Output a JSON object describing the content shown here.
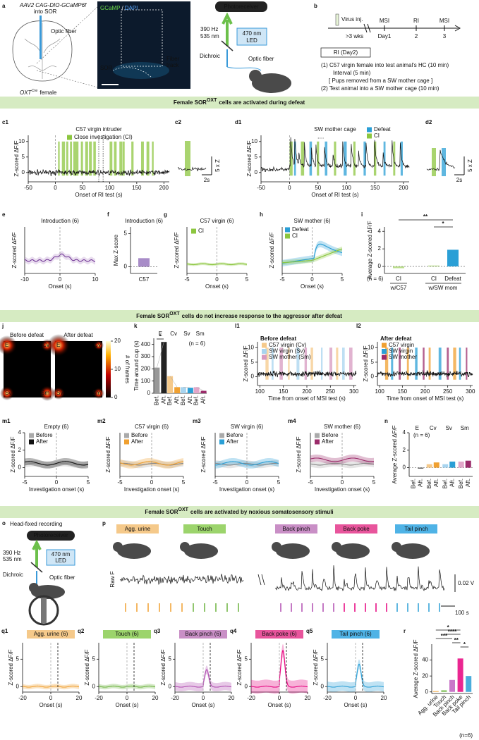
{
  "a": {
    "label": "a",
    "virus": "AAV2 CAG-DIO-GCaMP6f",
    "into": "into SOR",
    "fiber": "Optic fiber",
    "mouse": [
      "OXT",
      "Cre",
      "female"
    ],
    "stain": [
      "GCaMP",
      "/",
      "DAPI"
    ],
    "sor": "SOR",
    "track": [
      "Fiber",
      "track"
    ],
    "photoreceiver": "Photoreceiver",
    "freq": [
      "390 Hz",
      "535 nm"
    ],
    "led": [
      "470 nm",
      "LED"
    ],
    "dichroic": "Dichroic",
    "fiber2": "Optic fiber"
  },
  "b": {
    "label": "b",
    "virus": "Virus inj.",
    "wait": ">3 wks",
    "sessions": [
      {
        "name": "MSI",
        "day": "Day1"
      },
      {
        "name": "RI",
        "day": "2"
      },
      {
        "name": "MSI",
        "day": "3"
      }
    ],
    "box": "RI (Day2)",
    "steps": [
      "(1)  C57 virgin female into test animal's HC (10 min)",
      "Interval (5 min)",
      "[ Pups removed from a SW mother cage ]",
      "(2) Test animal into a SW mother cage (10 min)"
    ]
  },
  "banners": [
    [
      "Female SOR",
      "OXT",
      "cells are activated during defeat"
    ],
    [
      "Female SOR",
      "OXT",
      "cells do not increase response to the aggressor after defeat"
    ],
    [
      "Female SOR",
      "OXT",
      "cells are activated by noxious somatosensory stimuli"
    ]
  ],
  "c1": {
    "label": "c1",
    "title": "C57 virgin intruder",
    "legend": [
      "Close investigation (CI)"
    ],
    "ylabel": "Z-scored ΔF/F",
    "xlabel": "Onset of RI test (s)",
    "xlim": [
      -50,
      210
    ],
    "ylim": [
      -3,
      12
    ],
    "xticks": [
      -50,
      0,
      50,
      100,
      150,
      200
    ],
    "yticks": [
      0,
      5,
      10
    ]
  },
  "c2": {
    "label": "c2",
    "scale_y": "5 x Z",
    "scale_x": "2s"
  },
  "d1": {
    "label": "d1",
    "title": "SW mother cage",
    "legend": [
      "Defeat",
      "CI"
    ],
    "ylabel": "Z-scored ΔF/F",
    "xlabel": "Onset of RI test (s)",
    "xlim": [
      -50,
      210
    ],
    "ylim": [
      -3,
      12
    ],
    "xticks": [
      -50,
      0,
      50,
      100,
      150,
      200
    ],
    "yticks": [
      0,
      5,
      10
    ]
  },
  "d2": {
    "label": "d2",
    "scale_y": "5 x Z",
    "scale_x": "2s"
  },
  "e": {
    "label": "e",
    "title": "Introduction (6)",
    "ylabel": "Z-scored ΔF/F",
    "xlabel": "Onset (s)",
    "xlim": [
      -10,
      10
    ],
    "ylim": [
      -1,
      3
    ],
    "xticks": [
      -10,
      0,
      10
    ]
  },
  "f": {
    "label": "f",
    "title": "Introduction (6)",
    "ylabel": "Max Z-score",
    "ylim": [
      -1,
      6
    ],
    "yticks": [
      0,
      5
    ],
    "categories": [
      "C57"
    ],
    "values": [
      1.3
    ]
  },
  "g": {
    "label": "g",
    "title": "C57 virgin (6)",
    "legend": [
      "CI"
    ],
    "ylabel": "Z-scored ΔF/F",
    "xlabel": "Onset (s)",
    "xlim": [
      -5,
      5
    ],
    "ylim": [
      -1,
      4
    ],
    "xticks": [
      -5,
      0,
      5
    ]
  },
  "h": {
    "label": "h",
    "title": "SW mother (6)",
    "legend": [
      "Defeat",
      "CI"
    ],
    "ylabel": "Z-scored ΔF/F",
    "xlabel": "Onset (s)",
    "xlim": [
      -5,
      5
    ],
    "ylim": [
      -1,
      4
    ],
    "xticks": [
      -5,
      0,
      5
    ]
  },
  "i": {
    "label": "i",
    "ylabel": "Average Z-scored ΔF/F",
    "ylim": [
      -0.8,
      4.5
    ],
    "yticks": [
      0,
      2,
      4
    ],
    "categories": [
      "CI",
      "CI",
      "Defeat"
    ],
    "groups": [
      "w/C57",
      "w/SW mom"
    ],
    "values": [
      -0.2,
      0.1,
      1.9
    ],
    "n": "(n = 6)",
    "sig": [
      "**",
      "*"
    ]
  },
  "j": {
    "label": "j",
    "before": "Before defeat",
    "after": "After defeat",
    "corners": [
      "E",
      "Cv",
      "Sv",
      "Sm"
    ],
    "clim": [
      0,
      20
    ],
    "cbar_ticks": [
      0,
      10,
      20
    ],
    "cbar_label": "# of frames"
  },
  "k": {
    "label": "k",
    "ylabel": "Time around cup (s)",
    "ylim": [
      0,
      450
    ],
    "yticks": [
      0,
      100,
      200,
      300,
      400
    ],
    "groups": [
      "E",
      "Cv",
      "Sv",
      "Sm"
    ],
    "n": "(n = 6)",
    "sig": "*",
    "series": [
      {
        "name": "Bef.",
        "values": [
          210,
          140,
          50,
          50
        ]
      },
      {
        "name": "Aft.",
        "values": [
          420,
          50,
          45,
          20
        ]
      }
    ]
  },
  "l1": {
    "label": "l1",
    "title": "Before defeat",
    "legend": [
      "C57 virgin (Cv)",
      "SW virgin (Sv)",
      "SW mother (Sm)"
    ],
    "ylabel": "Z-scored ΔF/F",
    "xlabel": "Time from onset of MSI test (s)",
    "xlim": [
      95,
      305
    ],
    "ylim": [
      -3,
      12
    ],
    "xticks": [
      100,
      150,
      200,
      250,
      300
    ],
    "yticks": [
      0,
      5,
      10
    ]
  },
  "l2": {
    "label": "l2",
    "title": "After defeat",
    "legend": [
      "C57 virgin",
      "SW virgin",
      "SW mother"
    ],
    "ylabel": "Z-scored ΔF/F",
    "xlabel": "Time from onset of MSI test (s)",
    "xlim": [
      95,
      305
    ],
    "ylim": [
      -3,
      12
    ],
    "xticks": [
      100,
      150,
      200,
      250,
      300
    ],
    "yticks": [
      0,
      5,
      10
    ]
  },
  "m": [
    {
      "label": "m1",
      "title": "Empty (6)",
      "legend": [
        "Before",
        "After"
      ],
      "ylabel": "Z-scored ΔF/F",
      "xlabel": "Investigation onset (s)",
      "xlim": [
        -5,
        5
      ],
      "ylim": [
        -1,
        4
      ],
      "xticks": [
        -5,
        0,
        5
      ],
      "yticks": [
        0,
        2,
        4
      ]
    },
    {
      "label": "m2",
      "title": "C57 virgin (6)",
      "legend": [
        "Before",
        "After"
      ],
      "ylabel": "Z-scored ΔF/F",
      "xlabel": "Investigation onset (s)",
      "xlim": [
        -5,
        5
      ],
      "ylim": [
        -1,
        4
      ],
      "xticks": [
        -5,
        0,
        5
      ]
    },
    {
      "label": "m3",
      "title": "SW virgin (6)",
      "legend": [
        "Before",
        "After"
      ],
      "ylabel": "Z-scored ΔF/F",
      "xlabel": "Investigation onset (s)",
      "xlim": [
        -5,
        5
      ],
      "ylim": [
        -1,
        4
      ],
      "xticks": [
        -5,
        0,
        5
      ]
    },
    {
      "label": "m4",
      "title": "SW mother (6)",
      "legend": [
        "Before",
        "After"
      ],
      "ylabel": "Z-scored ΔF/F",
      "xlabel": "Investigation onset (s)",
      "xlim": [
        -5,
        5
      ],
      "ylim": [
        -1,
        4
      ],
      "xticks": [
        -5,
        0,
        5
      ]
    }
  ],
  "n": {
    "label": "n",
    "ylabel": "Average Z-scored ΔF/F",
    "ylim": [
      -1,
      4
    ],
    "yticks": [
      0,
      2,
      4
    ],
    "groups": [
      "E",
      "Cv",
      "Sv",
      "Sm"
    ],
    "n": "(n = 6)",
    "series": [
      {
        "name": "Bef.",
        "values": [
          0,
          0.4,
          0.4,
          0.7
        ]
      },
      {
        "name": "Aft.",
        "values": [
          -0.1,
          0.6,
          0.7,
          0.8
        ]
      }
    ]
  },
  "o": {
    "label": "o",
    "title": "Head-fixed recording",
    "photoreceiver": "Photoreceiver",
    "freq": [
      "390 Hz",
      "535 nm"
    ],
    "led": [
      "470 nm",
      "LED"
    ],
    "dichroic": "Dichroic",
    "fiber": "Optic fiber"
  },
  "p": {
    "label": "p",
    "stimuli": [
      "Agg. urine",
      "Touch",
      "Back pinch",
      "Back poke",
      "Tail pinch"
    ],
    "ylabel": "Raw F",
    "scale_y": "0.02 V",
    "scale_x": "100 s"
  },
  "q": [
    {
      "label": "q1",
      "title": "Agg. urine (6)",
      "ylabel": "Z-scored ΔF/F",
      "xlabel": "Onset (s)",
      "xlim": [
        -20,
        20
      ],
      "ylim": [
        -1,
        8
      ],
      "xticks": [
        -20,
        0,
        20
      ],
      "yticks": [
        0,
        5
      ]
    },
    {
      "label": "q2",
      "title": "Touch (6)",
      "ylabel": "Z-scored ΔF/F",
      "xlabel": "Onset (s)",
      "xlim": [
        -20,
        20
      ],
      "ylim": [
        -1,
        8
      ],
      "xticks": [
        -20,
        0,
        20
      ],
      "yticks": [
        0,
        5
      ]
    },
    {
      "label": "q3",
      "title": "Back pinch (6)",
      "ylabel": "Z-scored ΔF/F",
      "xlabel": "Onset (s)",
      "xlim": [
        -20,
        20
      ],
      "ylim": [
        -1,
        8
      ],
      "xticks": [
        -20,
        0,
        20
      ],
      "yticks": [
        0,
        5
      ]
    },
    {
      "label": "q4",
      "title": "Back poke (6)",
      "ylabel": "Z-scored ΔF/F",
      "xlabel": "Onset (s)",
      "xlim": [
        -20,
        20
      ],
      "ylim": [
        -1,
        8
      ],
      "xticks": [
        -20,
        0,
        20
      ],
      "yticks": [
        0,
        5
      ]
    },
    {
      "label": "q5",
      "title": "Tail pinch (6)",
      "ylabel": "Z-scored ΔF/F",
      "xlabel": "Onset (s)",
      "xlim": [
        -20,
        20
      ],
      "ylim": [
        -1,
        8
      ],
      "xticks": [
        -20,
        0,
        20
      ],
      "yticks": [
        0,
        5
      ]
    }
  ],
  "r": {
    "label": "r",
    "ylabel": "Average Z-scored ΔF/F",
    "ylim": [
      -2,
      60
    ],
    "yticks": [
      0,
      20,
      40
    ],
    "categories": [
      "Agg. urine",
      "Touch",
      "Back pinch",
      "Back poke",
      "Tail pinch"
    ],
    "values": [
      1,
      2,
      15,
      42,
      20
    ],
    "sig": [
      "*",
      "****",
      "***",
      "**",
      "*"
    ],
    "n": "(n=6)"
  }
}
